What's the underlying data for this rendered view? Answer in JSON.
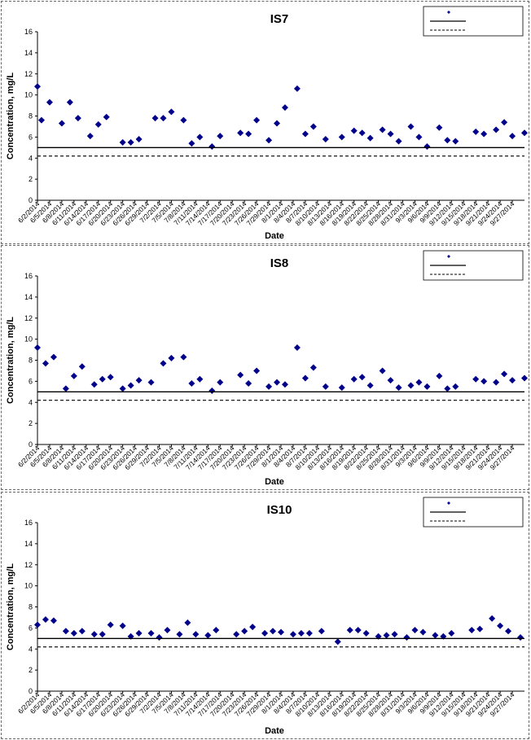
{
  "chart_data": [
    {
      "type": "scatter",
      "title": "IS7",
      "xlabel": "Date",
      "ylabel": "Concentration, mg/L",
      "ylim": [
        0,
        16
      ],
      "yticks": [
        0,
        2,
        4,
        6,
        8,
        10,
        12,
        14,
        16
      ],
      "xlim": [
        "6/2/2014",
        "9/30/2014"
      ],
      "xticks": [
        "6/2/2014",
        "6/5/2014",
        "6/8/2014",
        "6/11/2014",
        "6/14/2014",
        "6/17/2014",
        "6/20/2014",
        "6/23/2014",
        "6/26/2014",
        "6/29/2014",
        "7/2/2014",
        "7/5/2014",
        "7/8/2014",
        "7/11/2014",
        "7/14/2014",
        "7/17/2014",
        "7/20/2014",
        "7/23/2014",
        "7/26/2014",
        "7/29/2014",
        "8/1/2014",
        "8/4/2014",
        "8/7/2014",
        "8/10/2014",
        "8/13/2014",
        "8/16/2014",
        "8/19/2014",
        "8/22/2014",
        "8/25/2014",
        "8/28/2014",
        "8/31/2014",
        "9/3/2014",
        "9/6/2014",
        "9/9/2014",
        "9/12/2014",
        "9/15/2014",
        "9/18/2014",
        "9/21/2014",
        "9/24/2014",
        "9/27/2014"
      ],
      "legend_position": "top-right",
      "series": [
        {
          "marker": "diamond",
          "color": "#00008B",
          "points": [
            {
              "x": "6/2/2014",
              "y": 10.8
            },
            {
              "x": "6/3/2014",
              "y": 7.6
            },
            {
              "x": "6/5/2014",
              "y": 9.3
            },
            {
              "x": "6/8/2014",
              "y": 7.3
            },
            {
              "x": "6/10/2014",
              "y": 9.3
            },
            {
              "x": "6/12/2014",
              "y": 7.8
            },
            {
              "x": "6/15/2014",
              "y": 6.1
            },
            {
              "x": "6/17/2014",
              "y": 7.2
            },
            {
              "x": "6/19/2014",
              "y": 7.9
            },
            {
              "x": "6/23/2014",
              "y": 5.5
            },
            {
              "x": "6/25/2014",
              "y": 5.5
            },
            {
              "x": "6/27/2014",
              "y": 5.8
            },
            {
              "x": "7/1/2014",
              "y": 7.8
            },
            {
              "x": "7/3/2014",
              "y": 7.8
            },
            {
              "x": "7/5/2014",
              "y": 8.4
            },
            {
              "x": "7/8/2014",
              "y": 7.6
            },
            {
              "x": "7/10/2014",
              "y": 5.4
            },
            {
              "x": "7/12/2014",
              "y": 6.0
            },
            {
              "x": "7/15/2014",
              "y": 5.1
            },
            {
              "x": "7/17/2014",
              "y": 6.1
            },
            {
              "x": "7/22/2014",
              "y": 6.4
            },
            {
              "x": "7/24/2014",
              "y": 6.3
            },
            {
              "x": "7/26/2014",
              "y": 7.6
            },
            {
              "x": "7/29/2014",
              "y": 5.7
            },
            {
              "x": "7/31/2014",
              "y": 7.3
            },
            {
              "x": "8/2/2014",
              "y": 8.8
            },
            {
              "x": "8/5/2014",
              "y": 10.6
            },
            {
              "x": "8/7/2014",
              "y": 6.3
            },
            {
              "x": "8/9/2014",
              "y": 7.0
            },
            {
              "x": "8/12/2014",
              "y": 5.8
            },
            {
              "x": "8/16/2014",
              "y": 6.0
            },
            {
              "x": "8/19/2014",
              "y": 6.6
            },
            {
              "x": "8/21/2014",
              "y": 6.4
            },
            {
              "x": "8/23/2014",
              "y": 5.9
            },
            {
              "x": "8/26/2014",
              "y": 6.7
            },
            {
              "x": "8/28/2014",
              "y": 6.3
            },
            {
              "x": "8/30/2014",
              "y": 5.6
            },
            {
              "x": "9/2/2014",
              "y": 7.0
            },
            {
              "x": "9/4/2014",
              "y": 6.0
            },
            {
              "x": "9/6/2014",
              "y": 5.1
            },
            {
              "x": "9/9/2014",
              "y": 6.9
            },
            {
              "x": "9/11/2014",
              "y": 5.7
            },
            {
              "x": "9/13/2014",
              "y": 5.6
            },
            {
              "x": "9/18/2014",
              "y": 6.5
            },
            {
              "x": "9/20/2014",
              "y": 6.3
            },
            {
              "x": "9/23/2014",
              "y": 6.7
            },
            {
              "x": "9/25/2014",
              "y": 7.4
            },
            {
              "x": "9/27/2014",
              "y": 6.1
            },
            {
              "x": "9/30/2014",
              "y": 6.4
            }
          ]
        },
        {
          "line": "solid",
          "color": "#000000",
          "y": 5.0
        },
        {
          "line": "dashed",
          "color": "#000000",
          "y": 4.2
        }
      ]
    },
    {
      "type": "scatter",
      "title": "IS8",
      "xlabel": "Date",
      "ylabel": "Concentration, mg/L",
      "ylim": [
        0,
        16
      ],
      "yticks": [
        0,
        2,
        4,
        6,
        8,
        10,
        12,
        14,
        16
      ],
      "xlim": [
        "6/2/2014",
        "9/30/2014"
      ],
      "xticks": [
        "6/2/2014",
        "6/5/2014",
        "6/8/2014",
        "6/11/2014",
        "6/14/2014",
        "6/17/2014",
        "6/20/2014",
        "6/23/2014",
        "6/26/2014",
        "6/29/2014",
        "7/2/2014",
        "7/5/2014",
        "7/8/2014",
        "7/11/2014",
        "7/14/2014",
        "7/17/2014",
        "7/20/2014",
        "7/23/2014",
        "7/26/2014",
        "7/29/2014",
        "8/1/2014",
        "8/4/2014",
        "8/7/2014",
        "8/10/2014",
        "8/13/2014",
        "8/16/2014",
        "8/19/2014",
        "8/22/2014",
        "8/25/2014",
        "8/28/2014",
        "8/31/2014",
        "9/3/2014",
        "9/6/2014",
        "9/9/2014",
        "9/12/2014",
        "9/15/2014",
        "9/18/2014",
        "9/21/2014",
        "9/24/2014",
        "9/27/2014"
      ],
      "legend_position": "top-right",
      "series": [
        {
          "marker": "diamond",
          "color": "#00008B",
          "points": [
            {
              "x": "6/2/2014",
              "y": 9.2
            },
            {
              "x": "6/4/2014",
              "y": 7.7
            },
            {
              "x": "6/6/2014",
              "y": 8.3
            },
            {
              "x": "6/9/2014",
              "y": 5.3
            },
            {
              "x": "6/11/2014",
              "y": 6.5
            },
            {
              "x": "6/13/2014",
              "y": 7.4
            },
            {
              "x": "6/16/2014",
              "y": 5.7
            },
            {
              "x": "6/18/2014",
              "y": 6.2
            },
            {
              "x": "6/20/2014",
              "y": 6.4
            },
            {
              "x": "6/23/2014",
              "y": 5.3
            },
            {
              "x": "6/25/2014",
              "y": 5.6
            },
            {
              "x": "6/27/2014",
              "y": 6.1
            },
            {
              "x": "6/30/2014",
              "y": 5.9
            },
            {
              "x": "7/3/2014",
              "y": 7.7
            },
            {
              "x": "7/5/2014",
              "y": 8.2
            },
            {
              "x": "7/8/2014",
              "y": 8.3
            },
            {
              "x": "7/10/2014",
              "y": 5.8
            },
            {
              "x": "7/12/2014",
              "y": 6.2
            },
            {
              "x": "7/15/2014",
              "y": 5.1
            },
            {
              "x": "7/17/2014",
              "y": 5.9
            },
            {
              "x": "7/22/2014",
              "y": 6.6
            },
            {
              "x": "7/24/2014",
              "y": 5.8
            },
            {
              "x": "7/26/2014",
              "y": 7.0
            },
            {
              "x": "7/29/2014",
              "y": 5.5
            },
            {
              "x": "7/31/2014",
              "y": 5.9
            },
            {
              "x": "8/2/2014",
              "y": 5.7
            },
            {
              "x": "8/5/2014",
              "y": 9.2
            },
            {
              "x": "8/7/2014",
              "y": 6.3
            },
            {
              "x": "8/9/2014",
              "y": 7.3
            },
            {
              "x": "8/12/2014",
              "y": 5.5
            },
            {
              "x": "8/16/2014",
              "y": 5.4
            },
            {
              "x": "8/19/2014",
              "y": 6.2
            },
            {
              "x": "8/21/2014",
              "y": 6.4
            },
            {
              "x": "8/23/2014",
              "y": 5.6
            },
            {
              "x": "8/26/2014",
              "y": 7.0
            },
            {
              "x": "8/28/2014",
              "y": 6.1
            },
            {
              "x": "8/30/2014",
              "y": 5.4
            },
            {
              "x": "9/2/2014",
              "y": 5.6
            },
            {
              "x": "9/4/2014",
              "y": 5.9
            },
            {
              "x": "9/6/2014",
              "y": 5.5
            },
            {
              "x": "9/9/2014",
              "y": 6.5
            },
            {
              "x": "9/11/2014",
              "y": 5.3
            },
            {
              "x": "9/13/2014",
              "y": 5.5
            },
            {
              "x": "9/18/2014",
              "y": 6.2
            },
            {
              "x": "9/20/2014",
              "y": 6.0
            },
            {
              "x": "9/23/2014",
              "y": 5.9
            },
            {
              "x": "9/25/2014",
              "y": 6.7
            },
            {
              "x": "9/27/2014",
              "y": 6.1
            },
            {
              "x": "9/30/2014",
              "y": 6.3
            }
          ]
        },
        {
          "line": "solid",
          "color": "#000000",
          "y": 5.0
        },
        {
          "line": "dashed",
          "color": "#000000",
          "y": 4.2
        }
      ]
    },
    {
      "type": "scatter",
      "title": "IS10",
      "xlabel": "Date",
      "ylabel": "Concentration, mg/L",
      "ylim": [
        0,
        16
      ],
      "yticks": [
        0,
        2,
        4,
        6,
        8,
        10,
        12,
        14,
        16
      ],
      "xlim": [
        "6/2/2014",
        "9/30/2014"
      ],
      "xticks": [
        "6/2/2014",
        "6/5/2014",
        "6/8/2014",
        "6/11/2014",
        "6/14/2014",
        "6/17/2014",
        "6/20/2014",
        "6/23/2014",
        "6/26/2014",
        "6/29/2014",
        "7/2/2014",
        "7/5/2014",
        "7/8/2014",
        "7/11/2014",
        "7/14/2014",
        "7/17/2014",
        "7/20/2014",
        "7/23/2014",
        "7/26/2014",
        "7/29/2014",
        "8/1/2014",
        "8/4/2014",
        "8/7/2014",
        "8/10/2014",
        "8/13/2014",
        "8/16/2014",
        "8/19/2014",
        "8/22/2014",
        "8/25/2014",
        "8/28/2014",
        "8/31/2014",
        "9/3/2014",
        "9/6/2014",
        "9/9/2014",
        "9/12/2014",
        "9/15/2014",
        "9/18/2014",
        "9/21/2014",
        "9/24/2014",
        "9/27/2014"
      ],
      "legend_position": "top-right",
      "series": [
        {
          "marker": "diamond",
          "color": "#00008B",
          "points": [
            {
              "x": "6/2/2014",
              "y": 6.3
            },
            {
              "x": "6/4/2014",
              "y": 6.8
            },
            {
              "x": "6/6/2014",
              "y": 6.7
            },
            {
              "x": "6/9/2014",
              "y": 5.7
            },
            {
              "x": "6/11/2014",
              "y": 5.5
            },
            {
              "x": "6/13/2014",
              "y": 5.7
            },
            {
              "x": "6/16/2014",
              "y": 5.4
            },
            {
              "x": "6/18/2014",
              "y": 5.4
            },
            {
              "x": "6/20/2014",
              "y": 6.3
            },
            {
              "x": "6/23/2014",
              "y": 6.2
            },
            {
              "x": "6/25/2014",
              "y": 5.2
            },
            {
              "x": "6/27/2014",
              "y": 5.5
            },
            {
              "x": "6/30/2014",
              "y": 5.5
            },
            {
              "x": "7/2/2014",
              "y": 5.1
            },
            {
              "x": "7/4/2014",
              "y": 5.8
            },
            {
              "x": "7/7/2014",
              "y": 5.4
            },
            {
              "x": "7/9/2014",
              "y": 6.5
            },
            {
              "x": "7/11/2014",
              "y": 5.4
            },
            {
              "x": "7/14/2014",
              "y": 5.3
            },
            {
              "x": "7/16/2014",
              "y": 5.8
            },
            {
              "x": "7/21/2014",
              "y": 5.4
            },
            {
              "x": "7/23/2014",
              "y": 5.7
            },
            {
              "x": "7/25/2014",
              "y": 6.1
            },
            {
              "x": "7/28/2014",
              "y": 5.5
            },
            {
              "x": "7/30/2014",
              "y": 5.7
            },
            {
              "x": "8/1/2014",
              "y": 5.6
            },
            {
              "x": "8/4/2014",
              "y": 5.4
            },
            {
              "x": "8/6/2014",
              "y": 5.5
            },
            {
              "x": "8/8/2014",
              "y": 5.5
            },
            {
              "x": "8/11/2014",
              "y": 5.7
            },
            {
              "x": "8/15/2014",
              "y": 4.7
            },
            {
              "x": "8/18/2014",
              "y": 5.8
            },
            {
              "x": "8/20/2014",
              "y": 5.8
            },
            {
              "x": "8/22/2014",
              "y": 5.5
            },
            {
              "x": "8/25/2014",
              "y": 5.2
            },
            {
              "x": "8/27/2014",
              "y": 5.3
            },
            {
              "x": "8/29/2014",
              "y": 5.4
            },
            {
              "x": "9/1/2014",
              "y": 5.1
            },
            {
              "x": "9/3/2014",
              "y": 5.8
            },
            {
              "x": "9/5/2014",
              "y": 5.6
            },
            {
              "x": "9/8/2014",
              "y": 5.3
            },
            {
              "x": "9/10/2014",
              "y": 5.2
            },
            {
              "x": "9/12/2014",
              "y": 5.5
            },
            {
              "x": "9/17/2014",
              "y": 5.8
            },
            {
              "x": "9/19/2014",
              "y": 5.9
            },
            {
              "x": "9/22/2014",
              "y": 6.9
            },
            {
              "x": "9/24/2014",
              "y": 6.2
            },
            {
              "x": "9/26/2014",
              "y": 5.7
            },
            {
              "x": "9/29/2014",
              "y": 5.1
            }
          ]
        },
        {
          "line": "solid",
          "color": "#000000",
          "y": 5.0
        },
        {
          "line": "dashed",
          "color": "#000000",
          "y": 4.2
        }
      ]
    }
  ]
}
